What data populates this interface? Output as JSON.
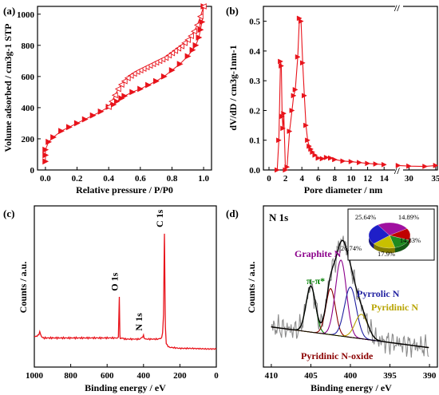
{
  "chart_data": [
    {
      "type": "line",
      "panel_label": "(a)",
      "xlabel": "Relative pressure / P/P0",
      "ylabel": "Volume adsorbed / cm3g-1 STP",
      "xlim": [
        -0.05,
        1.05
      ],
      "ylim": [
        0,
        1050
      ],
      "xticks": [
        "0.0",
        "0.2",
        "0.4",
        "0.6",
        "0.8",
        "1.0"
      ],
      "yticks": [
        "0",
        "200",
        "400",
        "600",
        "800",
        "1000"
      ],
      "colors": {
        "series": "#e8131b"
      },
      "series": [
        {
          "marker": "filled-triangle-right",
          "x": [
            0.0,
            0.0,
            0.0,
            0.02,
            0.05,
            0.1,
            0.15,
            0.2,
            0.25,
            0.3,
            0.35,
            0.4,
            0.43,
            0.45,
            0.48,
            0.5,
            0.55,
            0.6,
            0.65,
            0.7,
            0.75,
            0.8,
            0.85,
            0.9,
            0.93,
            0.95,
            0.97,
            0.98,
            0.99,
            1.0
          ],
          "y": [
            55,
            95,
            130,
            180,
            210,
            250,
            275,
            300,
            325,
            350,
            375,
            405,
            420,
            440,
            460,
            475,
            500,
            520,
            545,
            570,
            600,
            640,
            680,
            730,
            770,
            800,
            850,
            900,
            950,
            1050
          ]
        },
        {
          "marker": "open-triangle-left",
          "x": [
            1.0,
            0.98,
            0.96,
            0.94,
            0.92,
            0.9,
            0.88,
            0.86,
            0.84,
            0.82,
            0.8,
            0.78,
            0.76,
            0.74,
            0.72,
            0.7,
            0.68,
            0.66,
            0.64,
            0.62,
            0.6,
            0.58,
            0.56,
            0.54,
            0.52,
            0.5,
            0.48,
            0.46,
            0.44,
            0.42,
            0.4
          ],
          "y": [
            1050,
            985,
            930,
            890,
            860,
            835,
            815,
            795,
            780,
            765,
            750,
            735,
            720,
            710,
            700,
            690,
            680,
            670,
            660,
            650,
            640,
            630,
            618,
            605,
            590,
            570,
            548,
            520,
            480,
            440,
            405
          ]
        }
      ]
    },
    {
      "type": "line",
      "panel_label": "(b)",
      "xlabel": "Pore diameter / nm",
      "ylabel": "dV/dD / cm3g-1nm-1",
      "ylim": [
        0,
        0.55
      ],
      "xticks": [
        "0",
        "2",
        "4",
        "6",
        "8",
        "10",
        "12",
        "14",
        "30",
        "35"
      ],
      "yticks": [
        "0.0",
        "0.1",
        "0.2",
        "0.3",
        "0.4",
        "0.5"
      ],
      "axis_break": "//",
      "colors": {
        "series": "#e8131b"
      },
      "series": [
        {
          "marker": "filled-triangle-right",
          "x": [
            1.0,
            1.2,
            1.4,
            1.5,
            1.6,
            1.7,
            1.8,
            2.0,
            2.2,
            2.5,
            2.8,
            3.0,
            3.2,
            3.5,
            3.7,
            3.9,
            4.1,
            4.3,
            4.5,
            4.7,
            4.9,
            5.1,
            5.3,
            5.6,
            6.0,
            6.5,
            7.0,
            7.5,
            8.0,
            9.0,
            10.0,
            11.0,
            12.0,
            13.0,
            14.0,
            28.0,
            30.0,
            33.0,
            35.0
          ],
          "y": [
            0.0,
            0.1,
            0.365,
            0.35,
            0.18,
            0.14,
            0.19,
            0.0,
            0.01,
            0.13,
            0.2,
            0.25,
            0.27,
            0.38,
            0.51,
            0.5,
            0.36,
            0.25,
            0.15,
            0.1,
            0.08,
            0.07,
            0.06,
            0.05,
            0.04,
            0.038,
            0.042,
            0.04,
            0.035,
            0.03,
            0.028,
            0.025,
            0.022,
            0.02,
            0.018,
            0.015,
            0.013,
            0.012,
            0.015
          ]
        }
      ]
    },
    {
      "type": "line",
      "panel_label": "(c)",
      "xlabel": "Binding energy / eV",
      "ylabel": "Counts / a.u.",
      "xlim": [
        1000,
        0
      ],
      "xticks": [
        "1000",
        "800",
        "600",
        "400",
        "200",
        "0"
      ],
      "colors": {
        "series": "#e8131b"
      },
      "annotations": [
        {
          "text": "O 1s",
          "x": 532
        },
        {
          "text": "N 1s",
          "x": 400
        },
        {
          "text": "C 1s",
          "x": 285
        }
      ],
      "series": [
        {
          "x": [
            1000,
            980,
            970,
            960,
            950,
            900,
            850,
            800,
            750,
            700,
            650,
            600,
            560,
            545,
            538,
            533,
            530,
            528,
            520,
            500,
            450,
            420,
            405,
            400,
            397,
            390,
            350,
            320,
            300,
            295,
            290,
            286,
            285,
            284,
            282,
            280,
            275,
            260,
            200,
            150,
            100,
            50,
            0
          ],
          "y": [
            0.11,
            0.12,
            0.15,
            0.11,
            0.1,
            0.1,
            0.1,
            0.1,
            0.1,
            0.1,
            0.1,
            0.1,
            0.1,
            0.1,
            0.11,
            0.45,
            0.12,
            0.1,
            0.1,
            0.09,
            0.09,
            0.09,
            0.11,
            0.12,
            0.1,
            0.09,
            0.09,
            0.09,
            0.1,
            0.15,
            0.3,
            0.9,
            1.0,
            0.9,
            0.5,
            0.2,
            0.05,
            0.02,
            0.01,
            0.01,
            0.008,
            0.005,
            0.005
          ]
        }
      ]
    },
    {
      "type": "line",
      "panel_label": "(d)",
      "title": "N 1s",
      "xlabel": "Binding energy / eV",
      "ylabel": "Counts / a.u.",
      "xlim": [
        411,
        389
      ],
      "xticks": [
        "410",
        "405",
        "400",
        "395",
        "390"
      ],
      "annotations": [
        "Graphite N",
        "π-π*",
        "Pyrrolic N",
        "Pyridinic N",
        "Pyridinic N-oxide"
      ],
      "colors": {
        "raw": "#8c8c8c",
        "envelope": "#000000",
        "pi_pi": "#008000",
        "graphite_n": "#8b008b",
        "pyrrolic_n": "#1f1fa0",
        "pyridinic_n": "#b8a400",
        "pyridinic_n_oxide": "#8b0000",
        "envelope_b": "#c08080"
      },
      "peaks": [
        {
          "name": "π-π*",
          "center": 405.0,
          "height": 0.34,
          "width": 0.6
        },
        {
          "name": "Pyridinic N-oxide",
          "center": 402.5,
          "height": 0.34,
          "width": 0.6
        },
        {
          "name": "Graphite N",
          "center": 401.2,
          "height": 0.56,
          "width": 0.7
        },
        {
          "name": "Pyrrolic N",
          "center": 400.0,
          "height": 0.37,
          "width": 0.75
        },
        {
          "name": "Pyridinic N",
          "center": 398.6,
          "height": 0.18,
          "width": 0.8
        }
      ],
      "pie": {
        "slices": [
          {
            "label": "25.64%",
            "value": 25.64,
            "color": "#a010a0"
          },
          {
            "label": "14.89%",
            "value": 14.89,
            "color": "#c00000"
          },
          {
            "label": "14.83%",
            "value": 14.83,
            "color": "#1f8a1f"
          },
          {
            "label": "17.9%",
            "value": 17.9,
            "color": "#c8c000"
          },
          {
            "label": "26.74%",
            "value": 26.74,
            "color": "#1f1fc8"
          }
        ]
      }
    }
  ]
}
